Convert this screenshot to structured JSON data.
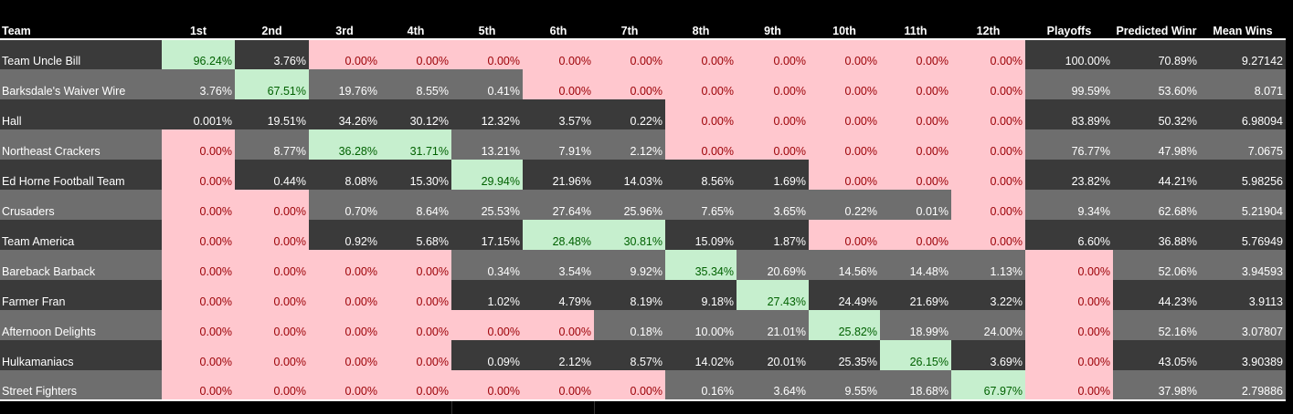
{
  "columns": [
    "Team",
    "1st",
    "2nd",
    "3rd",
    "4th",
    "5th",
    "6th",
    "7th",
    "8th",
    "9th",
    "10th",
    "11th",
    "12th",
    "Playoffs",
    "Predicted Winr",
    "Mean Wins"
  ],
  "rows": [
    {
      "team": "Team Uncle Bill",
      "values": [
        "96.24%",
        "3.76%",
        "0.00%",
        "0.00%",
        "0.00%",
        "0.00%",
        "0.00%",
        "0.00%",
        "0.00%",
        "0.00%",
        "0.00%",
        "0.00%",
        "100.00%",
        "70.89%",
        "9.27142"
      ],
      "hl": [
        "g",
        "",
        "p",
        "p",
        "p",
        "p",
        "p",
        "p",
        "p",
        "p",
        "p",
        "p",
        "",
        "",
        ""
      ]
    },
    {
      "team": "Barksdale's Waiver Wire",
      "values": [
        "3.76%",
        "67.51%",
        "19.76%",
        "8.55%",
        "0.41%",
        "0.00%",
        "0.00%",
        "0.00%",
        "0.00%",
        "0.00%",
        "0.00%",
        "0.00%",
        "99.59%",
        "53.60%",
        "8.071"
      ],
      "hl": [
        "",
        "g",
        "",
        "",
        "",
        "p",
        "p",
        "p",
        "p",
        "p",
        "p",
        "p",
        "",
        "",
        ""
      ]
    },
    {
      "team": "Hall",
      "values": [
        "0.001%",
        "19.51%",
        "34.26%",
        "30.12%",
        "12.32%",
        "3.57%",
        "0.22%",
        "0.00%",
        "0.00%",
        "0.00%",
        "0.00%",
        "0.00%",
        "83.89%",
        "50.32%",
        "6.98094"
      ],
      "hl": [
        "",
        "",
        "",
        "",
        "",
        "",
        "",
        "p",
        "p",
        "p",
        "p",
        "p",
        "",
        "",
        ""
      ]
    },
    {
      "team": "Northeast Crackers",
      "values": [
        "0.00%",
        "8.77%",
        "36.28%",
        "31.71%",
        "13.21%",
        "7.91%",
        "2.12%",
        "0.00%",
        "0.00%",
        "0.00%",
        "0.00%",
        "0.00%",
        "76.77%",
        "47.98%",
        "7.0675"
      ],
      "hl": [
        "p",
        "",
        "g",
        "g",
        "",
        "",
        "",
        "p",
        "p",
        "p",
        "p",
        "p",
        "",
        "",
        ""
      ]
    },
    {
      "team": "Ed Horne Football Team",
      "values": [
        "0.00%",
        "0.44%",
        "8.08%",
        "15.30%",
        "29.94%",
        "21.96%",
        "14.03%",
        "8.56%",
        "1.69%",
        "0.00%",
        "0.00%",
        "0.00%",
        "23.82%",
        "44.21%",
        "5.98256"
      ],
      "hl": [
        "p",
        "",
        "",
        "",
        "g",
        "",
        "",
        "",
        "",
        "p",
        "p",
        "p",
        "",
        "",
        ""
      ]
    },
    {
      "team": "Crusaders",
      "values": [
        "0.00%",
        "0.00%",
        "0.70%",
        "8.64%",
        "25.53%",
        "27.64%",
        "25.96%",
        "7.65%",
        "3.65%",
        "0.22%",
        "0.01%",
        "0.00%",
        "9.34%",
        "62.68%",
        "5.21904"
      ],
      "hl": [
        "p",
        "p",
        "",
        "",
        "",
        "",
        "",
        "",
        "",
        "",
        "",
        "p",
        "",
        "",
        ""
      ]
    },
    {
      "team": "Team America",
      "values": [
        "0.00%",
        "0.00%",
        "0.92%",
        "5.68%",
        "17.15%",
        "28.48%",
        "30.81%",
        "15.09%",
        "1.87%",
        "0.00%",
        "0.00%",
        "0.00%",
        "6.60%",
        "36.88%",
        "5.76949"
      ],
      "hl": [
        "p",
        "p",
        "",
        "",
        "",
        "g",
        "g",
        "",
        "",
        "p",
        "p",
        "p",
        "",
        "",
        ""
      ]
    },
    {
      "team": "Bareback Barback",
      "values": [
        "0.00%",
        "0.00%",
        "0.00%",
        "0.00%",
        "0.34%",
        "3.54%",
        "9.92%",
        "35.34%",
        "20.69%",
        "14.56%",
        "14.48%",
        "1.13%",
        "0.00%",
        "52.06%",
        "3.94593"
      ],
      "hl": [
        "p",
        "p",
        "p",
        "p",
        "",
        "",
        "",
        "g",
        "",
        "",
        "",
        "",
        "p",
        "",
        ""
      ]
    },
    {
      "team": "Farmer Fran",
      "values": [
        "0.00%",
        "0.00%",
        "0.00%",
        "0.00%",
        "1.02%",
        "4.79%",
        "8.19%",
        "9.18%",
        "27.43%",
        "24.49%",
        "21.69%",
        "3.22%",
        "0.00%",
        "44.23%",
        "3.9113"
      ],
      "hl": [
        "p",
        "p",
        "p",
        "p",
        "",
        "",
        "",
        "",
        "g",
        "",
        "",
        "",
        "p",
        "",
        ""
      ]
    },
    {
      "team": "Afternoon Delights",
      "values": [
        "0.00%",
        "0.00%",
        "0.00%",
        "0.00%",
        "0.00%",
        "0.00%",
        "0.18%",
        "10.00%",
        "21.01%",
        "25.82%",
        "18.99%",
        "24.00%",
        "0.00%",
        "52.16%",
        "3.07807"
      ],
      "hl": [
        "p",
        "p",
        "p",
        "p",
        "p",
        "p",
        "",
        "",
        "",
        "g",
        "",
        "",
        "p",
        "",
        ""
      ]
    },
    {
      "team": "Hulkamaniacs",
      "values": [
        "0.00%",
        "0.00%",
        "0.00%",
        "0.00%",
        "0.09%",
        "2.12%",
        "8.57%",
        "14.02%",
        "20.01%",
        "25.35%",
        "26.15%",
        "3.69%",
        "0.00%",
        "43.05%",
        "3.90389"
      ],
      "hl": [
        "p",
        "p",
        "p",
        "p",
        "",
        "",
        "",
        "",
        "",
        "",
        "g",
        "",
        "p",
        "",
        ""
      ]
    },
    {
      "team": "Street Fighters",
      "values": [
        "0.00%",
        "0.00%",
        "0.00%",
        "0.00%",
        "0.00%",
        "0.00%",
        "0.00%",
        "0.16%",
        "3.64%",
        "9.55%",
        "18.68%",
        "67.97%",
        "0.00%",
        "37.98%",
        "2.79886"
      ],
      "hl": [
        "p",
        "p",
        "p",
        "p",
        "p",
        "p",
        "p",
        "",
        "",
        "",
        "",
        "g",
        "p",
        "",
        ""
      ]
    }
  ],
  "colors": {
    "header_bg": "#000000",
    "dark_row": "#3a3a3a",
    "light_row": "#6e6e6e",
    "red_fill": "#ffc7ce",
    "red_text": "#9c0006",
    "green_fill": "#c6efce",
    "green_text": "#006100"
  }
}
